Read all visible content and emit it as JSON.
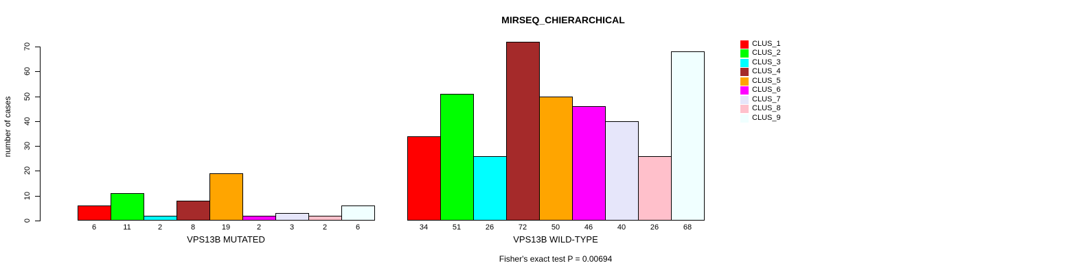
{
  "chart_data": {
    "type": "bar",
    "title": "MIRSEQ_CHIERARCHICAL",
    "ylabel": "number of cases",
    "xlabel": "",
    "ylim": [
      0,
      70
    ],
    "yticks": [
      0,
      10,
      20,
      30,
      40,
      50,
      60,
      70
    ],
    "grid": false,
    "legend_position": "right",
    "clusters": [
      {
        "name": "CLUS_1",
        "color": "#FF0000"
      },
      {
        "name": "CLUS_2",
        "color": "#00FF00"
      },
      {
        "name": "CLUS_3",
        "color": "#00FFFF"
      },
      {
        "name": "CLUS_4",
        "color": "#A52A2A"
      },
      {
        "name": "CLUS_5",
        "color": "#FFA500"
      },
      {
        "name": "CLUS_6",
        "color": "#FF00FF"
      },
      {
        "name": "CLUS_7",
        "color": "#E6E6FA"
      },
      {
        "name": "CLUS_8",
        "color": "#FFC0CB"
      },
      {
        "name": "CLUS_9",
        "color": "#F0FFFF"
      }
    ],
    "groups": [
      {
        "label": "VPS13B MUTATED",
        "values": [
          6,
          11,
          2,
          8,
          19,
          2,
          3,
          2,
          6
        ]
      },
      {
        "label": "VPS13B WILD-TYPE",
        "values": [
          34,
          51,
          26,
          72,
          50,
          46,
          40,
          26,
          68
        ]
      }
    ],
    "footnote": "Fisher's exact test P = 0.00694"
  }
}
